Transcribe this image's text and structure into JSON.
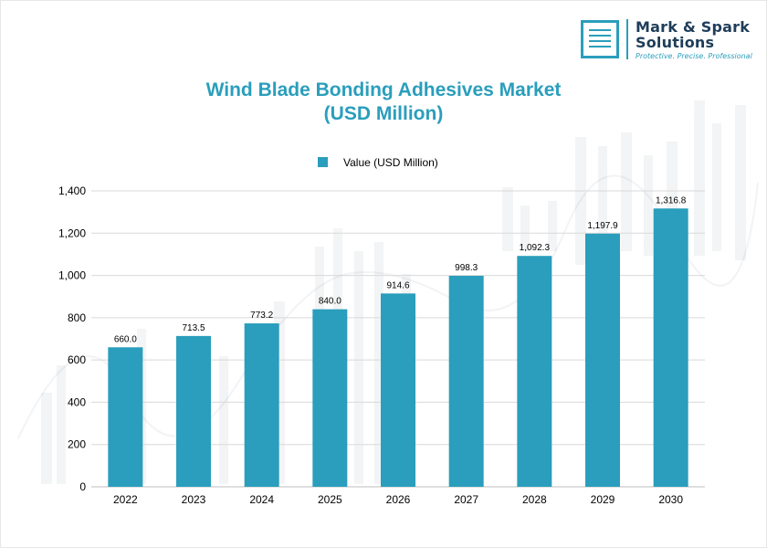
{
  "logo": {
    "line1": "Mark & Spark",
    "line2": "Solutions",
    "tagline": "Protective. Precise. Professional"
  },
  "colors": {
    "bar": "#2a9ebc",
    "title": "#2a9ebc",
    "grid": "#d9d9d9",
    "axis_text": "#000000"
  },
  "chart_data": {
    "type": "bar",
    "title_line1": "Wind Blade Bonding Adhesives Market",
    "title_line2": "(USD Million)",
    "legend": {
      "label": "Value (USD Million)",
      "position": "top"
    },
    "categories": [
      "2022",
      "2023",
      "2024",
      "2025",
      "2026",
      "2027",
      "2028",
      "2029",
      "2030"
    ],
    "series": [
      {
        "name": "Value (USD Million)",
        "values": [
          660.0,
          713.5,
          773.2,
          840.0,
          914.6,
          998.3,
          1092.3,
          1197.9,
          1316.8
        ],
        "labels": [
          "660.0",
          "713.5",
          "773.2",
          "840.0",
          "914.6",
          "998.3",
          "1,092.3",
          "1,197.9",
          "1,316.8"
        ]
      }
    ],
    "ylim": [
      0,
      1400
    ],
    "yticks": [
      {
        "value": 0,
        "label": "0"
      },
      {
        "value": 200,
        "label": "200"
      },
      {
        "value": 400,
        "label": "400"
      },
      {
        "value": 600,
        "label": "600"
      },
      {
        "value": 800,
        "label": "800"
      },
      {
        "value": 1000,
        "label": "1,000"
      },
      {
        "value": 1200,
        "label": "1,200"
      },
      {
        "value": 1400,
        "label": "1,400"
      }
    ],
    "grid": true
  }
}
